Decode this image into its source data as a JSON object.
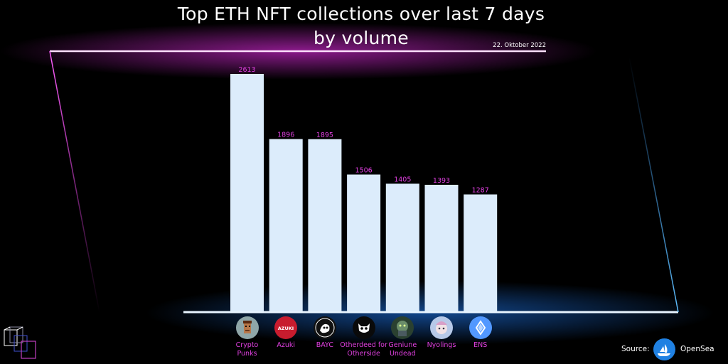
{
  "chart_data": {
    "type": "bar",
    "title_line1": "Top ETH NFT collections over last 7 days",
    "title_line2": "by volume",
    "date": "22. Oktober 2022",
    "categories": [
      "Crypto Punks",
      "Azuki",
      "BAYC",
      "Otherdeed for Otherside",
      "Geniune Undead",
      "Nyolings",
      "ENS"
    ],
    "category_lines": [
      [
        "Crypto",
        "Punks"
      ],
      [
        "Azuki"
      ],
      [
        "BAYC"
      ],
      [
        "Otherdeed for",
        "Otherside"
      ],
      [
        "Geniune",
        "Undead"
      ],
      [
        "Nyolings"
      ],
      [
        "ENS"
      ]
    ],
    "values": [
      2613,
      1896,
      1895,
      1506,
      1405,
      1393,
      1287
    ],
    "value_labels": [
      "2613",
      "1896",
      "1895",
      "1506",
      "1405",
      "1393",
      "1287"
    ],
    "ylim": [
      0,
      2613
    ],
    "grid": false,
    "bar_color": "#dcecfb",
    "label_color": "#e040e0"
  },
  "source": {
    "label": "Source:",
    "brand": "OpenSea"
  },
  "logos": [
    {
      "icon": "cryptopunk-icon",
      "bg": "#8fa6a8"
    },
    {
      "icon": "azuki-icon",
      "bg": "#c81c2e",
      "text": "AZUKI"
    },
    {
      "icon": "bayc-icon",
      "bg": "#111111"
    },
    {
      "icon": "otherdeed-icon",
      "bg": "#0a0a0a"
    },
    {
      "icon": "undead-icon",
      "bg": "#2a4030"
    },
    {
      "icon": "nyolings-icon",
      "bg": "#b7c9e8"
    },
    {
      "icon": "ens-icon",
      "bg": "#5298ff"
    }
  ]
}
